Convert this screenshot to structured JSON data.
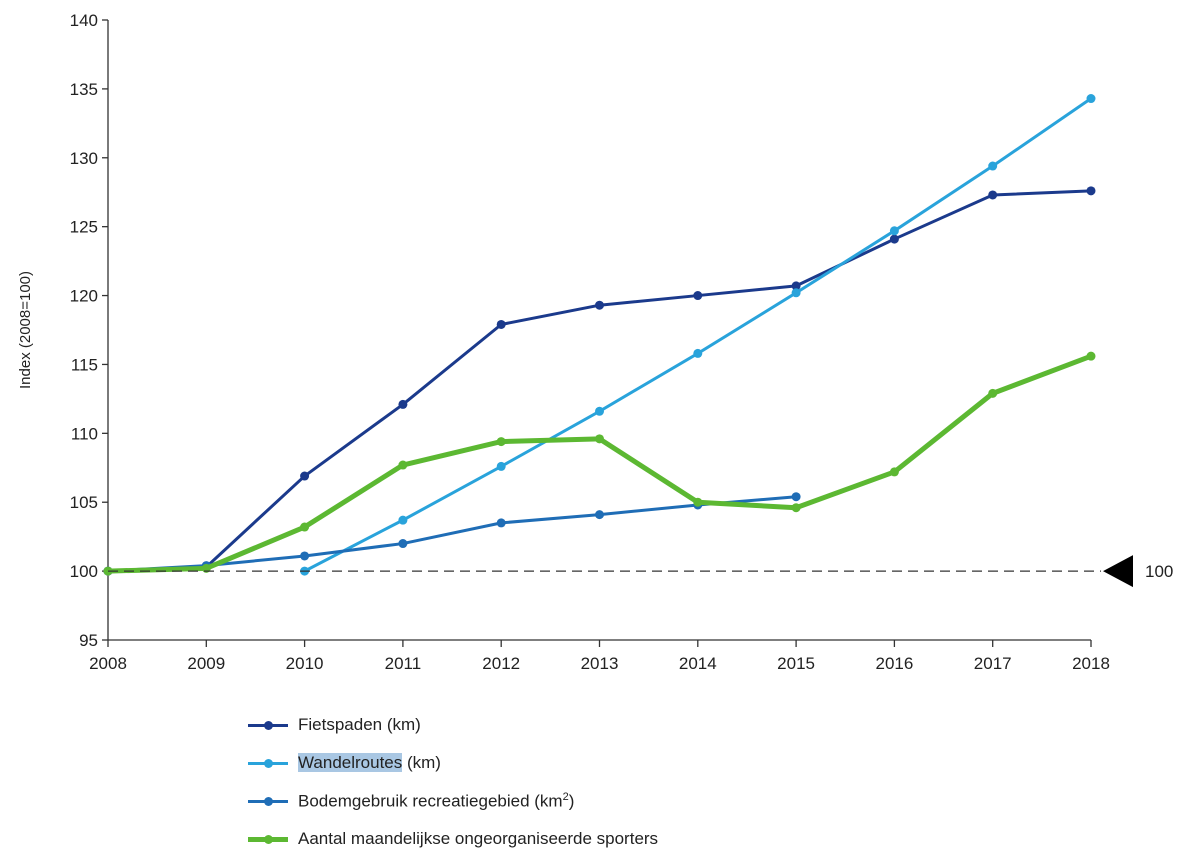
{
  "chart_data": {
    "type": "line",
    "ylabel": "Index (2008=100)",
    "ylim": [
      95,
      140
    ],
    "yticks": [
      "95",
      "100",
      "105",
      "110",
      "115",
      "120",
      "125",
      "130",
      "135",
      "140"
    ],
    "x": [
      "2008",
      "2009",
      "2010",
      "2011",
      "2012",
      "2013",
      "2014",
      "2015",
      "2016",
      "2017",
      "2018"
    ],
    "reference": {
      "value": 100,
      "label": "100"
    },
    "series": [
      {
        "name": "Fietspaden (km)",
        "color": "#1b3a8c",
        "width": 3,
        "values": [
          100,
          100.3,
          106.9,
          112.1,
          117.9,
          119.3,
          120.0,
          120.7,
          124.1,
          127.3,
          127.6
        ]
      },
      {
        "name": "Wandelroutes (km)",
        "color": "#29a3db",
        "width": 3,
        "values": [
          null,
          null,
          100.0,
          103.7,
          107.6,
          111.6,
          115.8,
          120.2,
          124.7,
          129.4,
          134.3
        ]
      },
      {
        "name": "Bodemgebruik recreatiegebied (km²)",
        "color": "#1f6db6",
        "width": 3,
        "values": [
          100,
          100.4,
          101.1,
          102.0,
          103.5,
          104.1,
          104.8,
          105.4,
          null,
          null,
          null
        ]
      },
      {
        "name": "Aantal maandelijkse ongeorganiseerde sporters",
        "color": "#5cb832",
        "width": 5,
        "values": [
          100,
          100.2,
          103.2,
          107.7,
          109.4,
          109.6,
          105.0,
          104.6,
          107.2,
          112.9,
          115.6
        ]
      }
    ]
  },
  "legend": {
    "items": [
      {
        "name_a": "",
        "name_b": "Fietspaden (km)",
        "sup": "",
        "tail": "",
        "color": "#1b3a8c",
        "highlight": false,
        "thick": false
      },
      {
        "name_a": "Wandelroutes",
        "name_b": " (km)",
        "sup": "",
        "tail": "",
        "color": "#29a3db",
        "highlight": true,
        "thick": false
      },
      {
        "name_a": "",
        "name_b": "Bodemgebruik recreatiegebied (km",
        "sup": "2",
        "tail": ")",
        "color": "#1f6db6",
        "highlight": false,
        "thick": false
      },
      {
        "name_a": "",
        "name_b": "Aantal maandelijkse ongeorganiseerde sporters",
        "sup": "",
        "tail": "",
        "color": "#5cb832",
        "highlight": false,
        "thick": true
      }
    ]
  }
}
